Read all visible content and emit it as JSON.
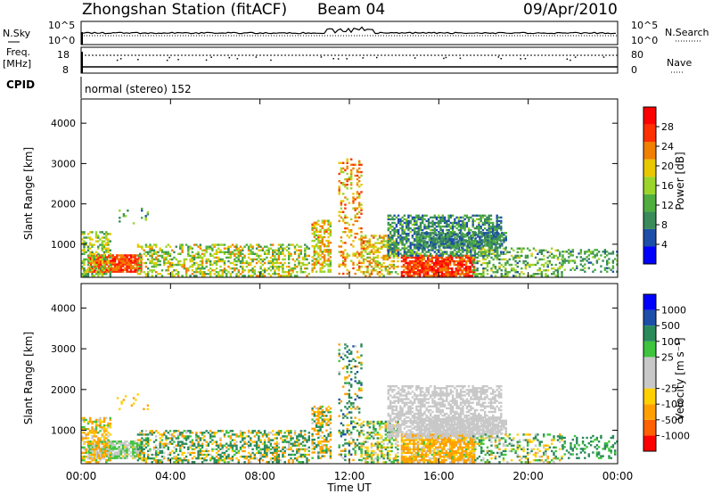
{
  "header": {
    "station": "Zhongshan Station (fitACF)",
    "beam": "Beam 04",
    "date": "09/Apr/2010"
  },
  "params": {
    "nsky_label": "N.Sky",
    "nsky_max": "10^5",
    "nsky_min": "10^0",
    "nsearch_label": "N.Search",
    "nsearch_max": "10^5",
    "nsearch_min": "10^0",
    "freq_label": "Freq.",
    "freq_unit": "[MHz]",
    "freq_max": "18",
    "freq_min": "8",
    "nave_label": "Nave",
    "nave_max": "80",
    "nave_min": "0",
    "cpid_label": "CPID",
    "cpid_text": "normal (stereo) 152"
  },
  "colors": {
    "power": [
      "#0000ff",
      "#1e4fa8",
      "#3a8a5a",
      "#4fae3f",
      "#9bd42a",
      "#e8c800",
      "#f08000",
      "#ff3000",
      "#ff0000"
    ],
    "velocity": [
      "#ff0000",
      "#ff6000",
      "#ffa000",
      "#ffd000",
      "#c8c8c8",
      "#c8c8c8",
      "#3ec43e",
      "#2a8a5a",
      "#1e4fa8",
      "#0000ff"
    ]
  },
  "chart_data": [
    {
      "type": "heatmap",
      "name": "power",
      "ylabel": "Slant Range [km]",
      "ylim": [
        180,
        4600
      ],
      "yticks": [
        "1000",
        "2000",
        "3000",
        "4000"
      ],
      "xlabel": "Time UT",
      "xlim": [
        "00:00",
        "24:00"
      ],
      "xticks": [
        "00:00",
        "04:00",
        "08:00",
        "12:00",
        "16:00",
        "20:00",
        "00:00"
      ],
      "colorbar_label": "Power [dB]",
      "colorbar_ticks": [
        "4",
        "8",
        "12",
        "16",
        "20",
        "24",
        "28"
      ],
      "colorbar_range": [
        0,
        30
      ],
      "regions": [
        {
          "t": [
            0.3,
            2.7
          ],
          "r": [
            300,
            750
          ],
          "v": [
            20,
            28
          ],
          "d": 0.85
        },
        {
          "t": [
            0.0,
            1.3
          ],
          "r": [
            200,
            1300
          ],
          "v": [
            8,
            20
          ],
          "d": 0.5
        },
        {
          "t": [
            2.5,
            10.2
          ],
          "r": [
            200,
            1000
          ],
          "v": [
            8,
            22
          ],
          "d": 0.45
        },
        {
          "t": [
            10.3,
            11.2
          ],
          "r": [
            300,
            1600
          ],
          "v": [
            12,
            24
          ],
          "d": 0.55
        },
        {
          "t": [
            11.5,
            12.5
          ],
          "r": [
            250,
            3100
          ],
          "v": [
            14,
            26
          ],
          "d": 0.25
        },
        {
          "t": [
            12.5,
            14.2
          ],
          "r": [
            200,
            1200
          ],
          "v": [
            12,
            24
          ],
          "d": 0.5
        },
        {
          "t": [
            14.3,
            17.6
          ],
          "r": [
            200,
            700
          ],
          "v": [
            20,
            30
          ],
          "d": 0.85
        },
        {
          "t": [
            13.7,
            18.8
          ],
          "r": [
            700,
            1700
          ],
          "v": [
            4,
            14
          ],
          "d": 0.6
        },
        {
          "t": [
            15.0,
            19.0
          ],
          "r": [
            900,
            1300
          ],
          "v": [
            4,
            12
          ],
          "d": 0.7
        },
        {
          "t": [
            17.5,
            21.5
          ],
          "r": [
            200,
            900
          ],
          "v": [
            6,
            18
          ],
          "d": 0.35
        },
        {
          "t": [
            21.5,
            24.0
          ],
          "r": [
            300,
            850
          ],
          "v": [
            6,
            14
          ],
          "d": 0.3
        },
        {
          "t": [
            1.5,
            3.0
          ],
          "r": [
            1500,
            1900
          ],
          "v": [
            6,
            16
          ],
          "d": 0.15
        }
      ]
    },
    {
      "type": "heatmap",
      "name": "velocity",
      "ylabel": "Slant Range [km]",
      "ylim": [
        180,
        4600
      ],
      "yticks": [
        "1000",
        "2000",
        "3000",
        "4000"
      ],
      "xlabel": "Time UT",
      "xlim": [
        "00:00",
        "24:00"
      ],
      "xticks": [
        "00:00",
        "04:00",
        "08:00",
        "12:00",
        "16:00",
        "20:00",
        "00:00"
      ],
      "colorbar_label": "Velocity [m s⁻¹]",
      "colorbar_ticks": [
        "1000",
        "500",
        "100",
        "25",
        "-25",
        "-100",
        "-500",
        "-1000"
      ],
      "colorbar_range": [
        -1000,
        1000
      ],
      "regions": [
        {
          "t": [
            0.3,
            2.7
          ],
          "r": [
            300,
            750
          ],
          "v": [
            -30,
            80
          ],
          "d": 0.85
        },
        {
          "t": [
            0.0,
            1.3
          ],
          "r": [
            200,
            1300
          ],
          "v": [
            -300,
            100
          ],
          "d": 0.5
        },
        {
          "t": [
            2.5,
            10.2
          ],
          "r": [
            200,
            1000
          ],
          "v": [
            -250,
            400
          ],
          "d": 0.45
        },
        {
          "t": [
            10.3,
            11.2
          ],
          "r": [
            300,
            1600
          ],
          "v": [
            -500,
            300
          ],
          "d": 0.55
        },
        {
          "t": [
            11.5,
            12.5
          ],
          "r": [
            250,
            3100
          ],
          "v": [
            -200,
            600
          ],
          "d": 0.25
        },
        {
          "t": [
            12.5,
            14.2
          ],
          "r": [
            200,
            1200
          ],
          "v": [
            -150,
            150
          ],
          "d": 0.5
        },
        {
          "t": [
            14.3,
            17.6
          ],
          "r": [
            200,
            900
          ],
          "v": [
            -400,
            50
          ],
          "d": 0.8
        },
        {
          "t": [
            13.7,
            18.8
          ],
          "r": [
            800,
            2100
          ],
          "v": [
            -20,
            20
          ],
          "d": 0.6
        },
        {
          "t": [
            15.0,
            19.0
          ],
          "r": [
            900,
            1300
          ],
          "v": [
            -20,
            20
          ],
          "d": 0.7
        },
        {
          "t": [
            17.5,
            21.5
          ],
          "r": [
            200,
            900
          ],
          "v": [
            -150,
            200
          ],
          "d": 0.35
        },
        {
          "t": [
            21.5,
            24.0
          ],
          "r": [
            300,
            850
          ],
          "v": [
            50,
            200
          ],
          "d": 0.3
        },
        {
          "t": [
            1.5,
            3.0
          ],
          "r": [
            1500,
            1900
          ],
          "v": [
            -200,
            -50
          ],
          "d": 0.15
        }
      ]
    }
  ]
}
